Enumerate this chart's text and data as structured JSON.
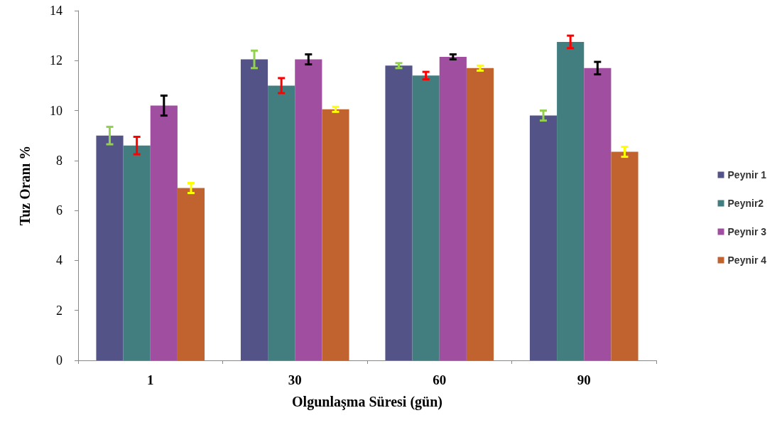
{
  "chart_data": {
    "type": "bar",
    "xlabel": "Olgunlaşma Süresi (gün)",
    "ylabel": "Tuz Oranı %",
    "categories": [
      "1",
      "30",
      "60",
      "90"
    ],
    "series": [
      {
        "name": "Peynir 1",
        "color": "#545388",
        "values": [
          9.0,
          12.05,
          11.8,
          9.8
        ],
        "errors": [
          0.35,
          0.35,
          0.1,
          0.2
        ]
      },
      {
        "name": "Peynir2",
        "color": "#427d80",
        "values": [
          8.6,
          11.0,
          11.4,
          12.75
        ],
        "errors": [
          0.35,
          0.3,
          0.15,
          0.25
        ]
      },
      {
        "name": "Peynir 3",
        "color": "#a04ea0",
        "values": [
          10.2,
          12.05,
          12.15,
          11.7
        ],
        "errors": [
          0.4,
          0.2,
          0.1,
          0.25
        ]
      },
      {
        "name": "Peynir 4",
        "color": "#c0632f",
        "values": [
          6.9,
          10.05,
          11.7,
          8.35
        ],
        "errors": [
          0.2,
          0.1,
          0.1,
          0.2
        ]
      }
    ],
    "ylim": [
      0,
      14
    ],
    "yticks": [
      0,
      2,
      4,
      6,
      8,
      10,
      12,
      14
    ],
    "grid": false,
    "legend": "right"
  }
}
